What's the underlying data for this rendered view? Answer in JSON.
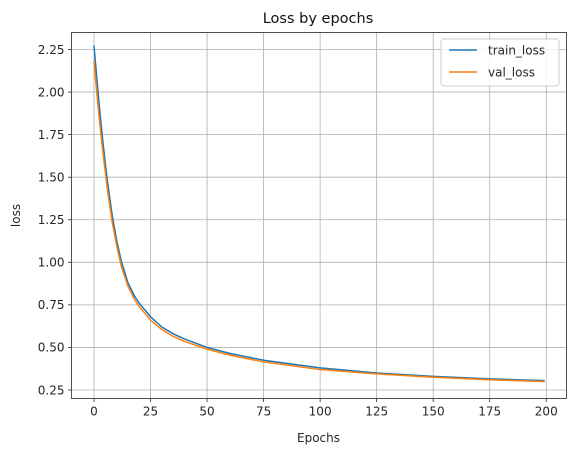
{
  "chart_data": {
    "type": "line",
    "title": "Loss by epochs",
    "xlabel": "Epochs",
    "ylabel": "loss",
    "xlim": [
      -9.95,
      208.95
    ],
    "ylim": [
      0.2,
      2.35
    ],
    "xticks": [
      0,
      25,
      50,
      75,
      100,
      125,
      150,
      175,
      200
    ],
    "xtick_labels": [
      "0",
      "25",
      "50",
      "75",
      "100",
      "125",
      "150",
      "175",
      "200"
    ],
    "yticks": [
      0.25,
      0.5,
      0.75,
      1.0,
      1.25,
      1.5,
      1.75,
      2.0,
      2.25
    ],
    "ytick_labels": [
      "0.25",
      "0.50",
      "0.75",
      "1.00",
      "1.25",
      "1.50",
      "1.75",
      "2.00",
      "2.25"
    ],
    "grid": true,
    "legend_position": "top-right",
    "series": [
      {
        "name": "train_loss",
        "color": "#1f77b4",
        "x": [
          0,
          1,
          2,
          3,
          4,
          5,
          6,
          8,
          10,
          12,
          15,
          18,
          20,
          25,
          30,
          35,
          40,
          50,
          60,
          75,
          100,
          125,
          150,
          175,
          199
        ],
        "y": [
          2.27,
          2.12,
          1.97,
          1.83,
          1.7,
          1.58,
          1.47,
          1.28,
          1.13,
          1.01,
          0.88,
          0.8,
          0.76,
          0.68,
          0.62,
          0.58,
          0.55,
          0.5,
          0.465,
          0.425,
          0.38,
          0.35,
          0.33,
          0.315,
          0.305
        ]
      },
      {
        "name": "val_loss",
        "color": "#ff7f0e",
        "x": [
          0,
          1,
          2,
          3,
          4,
          5,
          6,
          8,
          10,
          12,
          15,
          18,
          20,
          25,
          30,
          35,
          40,
          50,
          60,
          75,
          100,
          125,
          150,
          175,
          199
        ],
        "y": [
          2.18,
          2.03,
          1.89,
          1.76,
          1.64,
          1.53,
          1.42,
          1.24,
          1.1,
          0.98,
          0.86,
          0.78,
          0.74,
          0.66,
          0.605,
          0.565,
          0.535,
          0.49,
          0.455,
          0.415,
          0.37,
          0.345,
          0.325,
          0.31,
          0.3
        ]
      }
    ]
  }
}
